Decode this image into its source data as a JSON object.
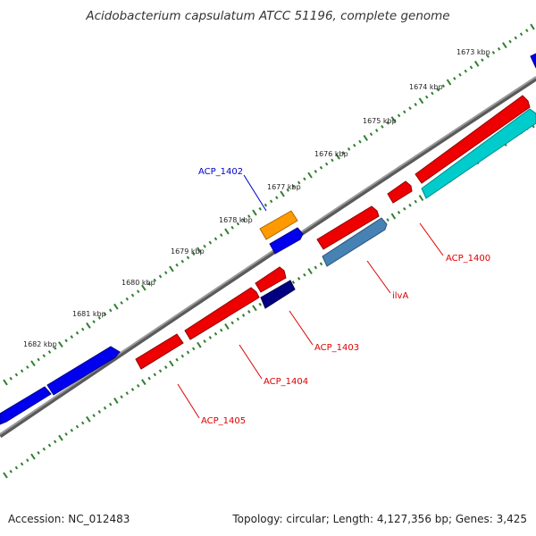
{
  "header": {
    "title": "Acidobacterium capsulatum ATCC 51196, complete genome"
  },
  "footer": {
    "accession": "Accession: NC_012483",
    "topology": "Topology: circular; Length: 4,127,356 bp; Genes: 3,425"
  },
  "ruler": {
    "tick_labels": [
      "1673 kbp",
      "1674 kbp",
      "1675 kbp",
      "1676 kbp",
      "1677 kbp",
      "1678 kbp",
      "1679 kbp",
      "1680 kbp",
      "1681 kbp",
      "1682 kbp"
    ],
    "tick_color": "#2f7f2f"
  },
  "backbone_color": "#808080",
  "colors": {
    "red_gene": "#ee0000",
    "blue_gene": "#0000ee",
    "orange_gene": "#ff9900",
    "cyan_gene": "#00cccc",
    "steel_gene": "#4682b4",
    "navy_gene": "#000080",
    "label_red": "#dd0000",
    "label_blue": "#0000cc"
  },
  "gene_labels": [
    {
      "name": "ACP_1402",
      "color": "#0000cc"
    },
    {
      "name": "ACP_1400",
      "color": "#dd0000"
    },
    {
      "name": "ilvA",
      "color": "#dd0000"
    },
    {
      "name": "ACP_1403",
      "color": "#dd0000"
    },
    {
      "name": "ACP_1404",
      "color": "#dd0000"
    },
    {
      "name": "ACP_1405",
      "color": "#dd0000"
    }
  ]
}
